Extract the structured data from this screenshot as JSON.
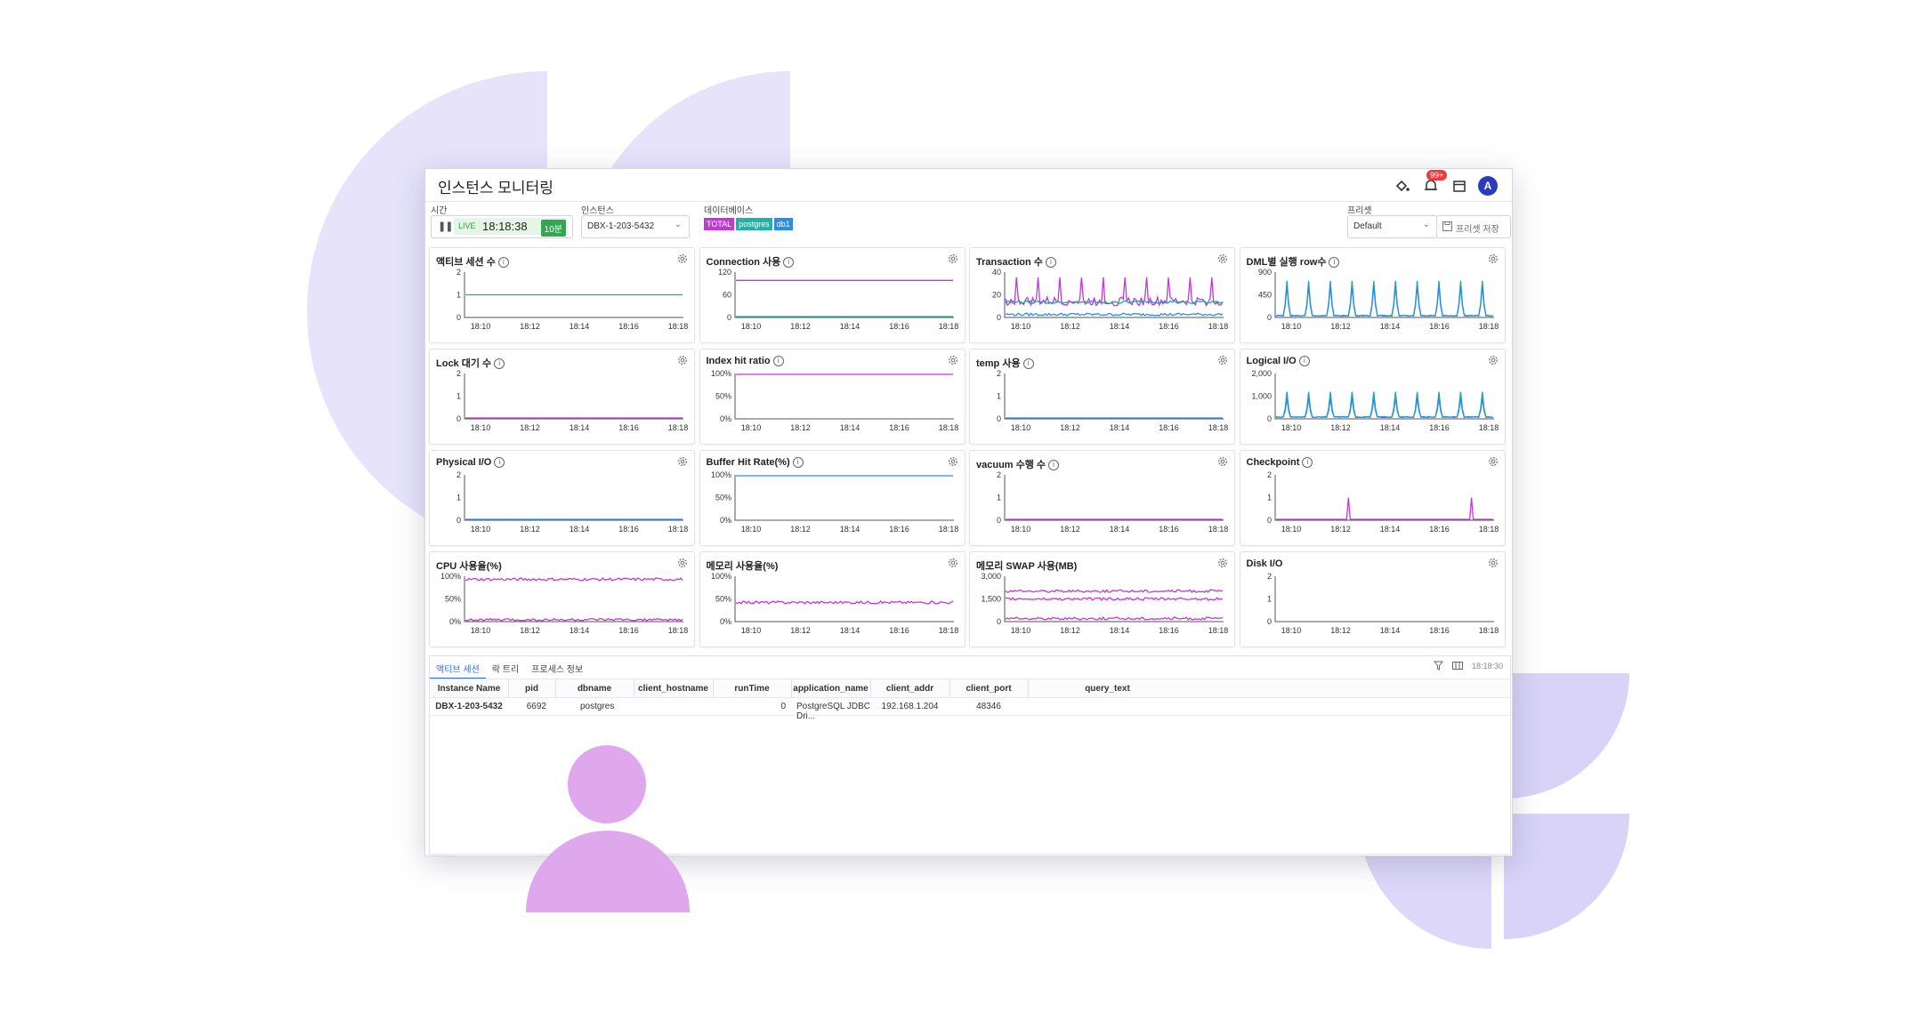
{
  "app": {
    "title": "인스턴스 모니터링",
    "notification_badge": "99+",
    "avatar_letter": "A"
  },
  "filters": {
    "time_label": "시간",
    "live_label": "LIVE",
    "clock": "18:18:38",
    "range": "10분",
    "instance_label": "인스턴스",
    "instance_value": "DBX-1-203-5432",
    "database_label": "데이터베이스",
    "database_tags": [
      {
        "text": "TOTAL",
        "color": "#c238d6"
      },
      {
        "text": "postgres",
        "color": "#1fb3a8"
      },
      {
        "text": "db1",
        "color": "#2d8ce8"
      }
    ],
    "preset_label": "프리셋",
    "preset_value": "Default",
    "preset_save": "프리셋 저장"
  },
  "colors": {
    "magenta": "#c238d6",
    "teal": "#1fa8a0",
    "blue": "#2d8ce8",
    "axis": "#555555",
    "accent": "#2b6de0"
  },
  "x_ticks": [
    "18:10",
    "18:12",
    "18:14",
    "18:16",
    "18:18"
  ],
  "charts": [
    {
      "title": "액티브 세션 수",
      "info": true,
      "y_ticks": [
        "2",
        "1",
        "0"
      ],
      "series": [
        {
          "color": "#1fa8a0",
          "kind": "flat",
          "level": 0.5
        }
      ]
    },
    {
      "title": "Connection 사용",
      "info": true,
      "y_ticks": [
        "120",
        "60",
        "0"
      ],
      "series": [
        {
          "color": "#c238d6",
          "kind": "flat",
          "level": 0.83
        },
        {
          "color": "#1fa8a0",
          "kind": "flat",
          "level": 0.0
        }
      ]
    },
    {
      "title": "Transaction 수",
      "info": true,
      "y_ticks": [
        "40",
        "20",
        "0"
      ],
      "series": [
        {
          "color": "#c238d6",
          "kind": "noise_spikes",
          "level": 0.35,
          "spike": 0.55
        },
        {
          "color": "#1fa8a0",
          "kind": "noise",
          "level": 0.33
        },
        {
          "color": "#2d8ce8",
          "kind": "noise",
          "level": 0.05
        }
      ]
    },
    {
      "title": "DML별 실행 row수",
      "info": true,
      "y_ticks": [
        "900",
        "450",
        "0"
      ],
      "series": [
        {
          "color": "#1fa8a0",
          "kind": "spikes",
          "level": 0.0,
          "spike": 0.82
        },
        {
          "color": "#2d8ce8",
          "kind": "spikes",
          "level": 0.0,
          "spike": 0.7
        }
      ]
    },
    {
      "title": "Lock 대기 수",
      "info": true,
      "y_ticks": [
        "2",
        "1",
        "0"
      ],
      "series": [
        {
          "color": "#c238d6",
          "kind": "flat",
          "level": 0.0
        }
      ]
    },
    {
      "title": "Index hit ratio",
      "info": true,
      "y_ticks": [
        "100%",
        "50%",
        "0%"
      ],
      "series": [
        {
          "color": "#c238d6",
          "kind": "flat",
          "level": 1.0
        }
      ]
    },
    {
      "title": "temp 사용",
      "info": true,
      "y_ticks": [
        "2",
        "1",
        "0"
      ],
      "series": [
        {
          "color": "#2d8ce8",
          "kind": "flat",
          "level": 0.0
        }
      ]
    },
    {
      "title": "Logical I/O",
      "info": true,
      "y_ticks": [
        "2,000",
        "1,000",
        "0"
      ],
      "series": [
        {
          "color": "#1fa8a0",
          "kind": "spikes",
          "level": 0.0,
          "spike": 0.6
        },
        {
          "color": "#2d8ce8",
          "kind": "spikes",
          "level": 0.0,
          "spike": 0.45
        }
      ]
    },
    {
      "title": "Physical I/O",
      "info": true,
      "y_ticks": [
        "2",
        "1",
        "0"
      ],
      "series": [
        {
          "color": "#2d8ce8",
          "kind": "flat",
          "level": 0.0
        }
      ]
    },
    {
      "title": "Buffer Hit Rate(%)",
      "info": true,
      "y_ticks": [
        "100%",
        "50%",
        "0%"
      ],
      "series": [
        {
          "color": "#2d8ce8",
          "kind": "flat",
          "level": 1.0
        }
      ]
    },
    {
      "title": "vacuum 수행 수",
      "info": true,
      "y_ticks": [
        "2",
        "1",
        "0"
      ],
      "series": [
        {
          "color": "#c238d6",
          "kind": "flat",
          "level": 0.0
        }
      ]
    },
    {
      "title": "Checkpoint",
      "info": true,
      "y_ticks": [
        "2",
        "1",
        "0"
      ],
      "series": [
        {
          "color": "#c238d6",
          "kind": "two_spikes",
          "level": 0.0,
          "spike": 0.5
        }
      ]
    },
    {
      "title": "CPU 사용율(%)",
      "info": false,
      "y_ticks": [
        "100%",
        "50%",
        "0%"
      ],
      "series": [
        {
          "color": "#c238d6",
          "kind": "noise",
          "level": 0.95
        },
        {
          "color": "#c238d6",
          "kind": "noise",
          "level": 0.02
        }
      ]
    },
    {
      "title": "메모리 사용율(%)",
      "info": false,
      "y_ticks": [
        "100%",
        "50%",
        "0%"
      ],
      "series": [
        {
          "color": "#c238d6",
          "kind": "noise",
          "level": 0.42
        }
      ]
    },
    {
      "title": "메모리 SWAP 사용(MB)",
      "info": false,
      "y_ticks": [
        "3,000",
        "1,500",
        "0"
      ],
      "series": [
        {
          "color": "#c238d6",
          "kind": "noise",
          "level": 0.68
        },
        {
          "color": "#c238d6",
          "kind": "noise",
          "level": 0.5
        },
        {
          "color": "#c238d6",
          "kind": "noise",
          "level": 0.05
        }
      ]
    },
    {
      "title": "Disk I/O",
      "info": false,
      "y_ticks": [
        "2",
        "1",
        "0"
      ],
      "series": []
    }
  ],
  "bottom": {
    "tabs": [
      "액티브 세션",
      "락 트리",
      "프로세스 정보"
    ],
    "timestamp": "18:18:30",
    "columns": [
      "Instance Name",
      "pid",
      "dbname",
      "client_hostname",
      "runTime",
      "application_name",
      "client_addr",
      "client_port",
      "query_text"
    ],
    "rows": [
      [
        "DBX-1-203-5432",
        "6692",
        "postgres",
        "",
        "0",
        "PostgreSQL JDBC Dri...",
        "192.168.1.204",
        "48346",
        ""
      ]
    ]
  }
}
